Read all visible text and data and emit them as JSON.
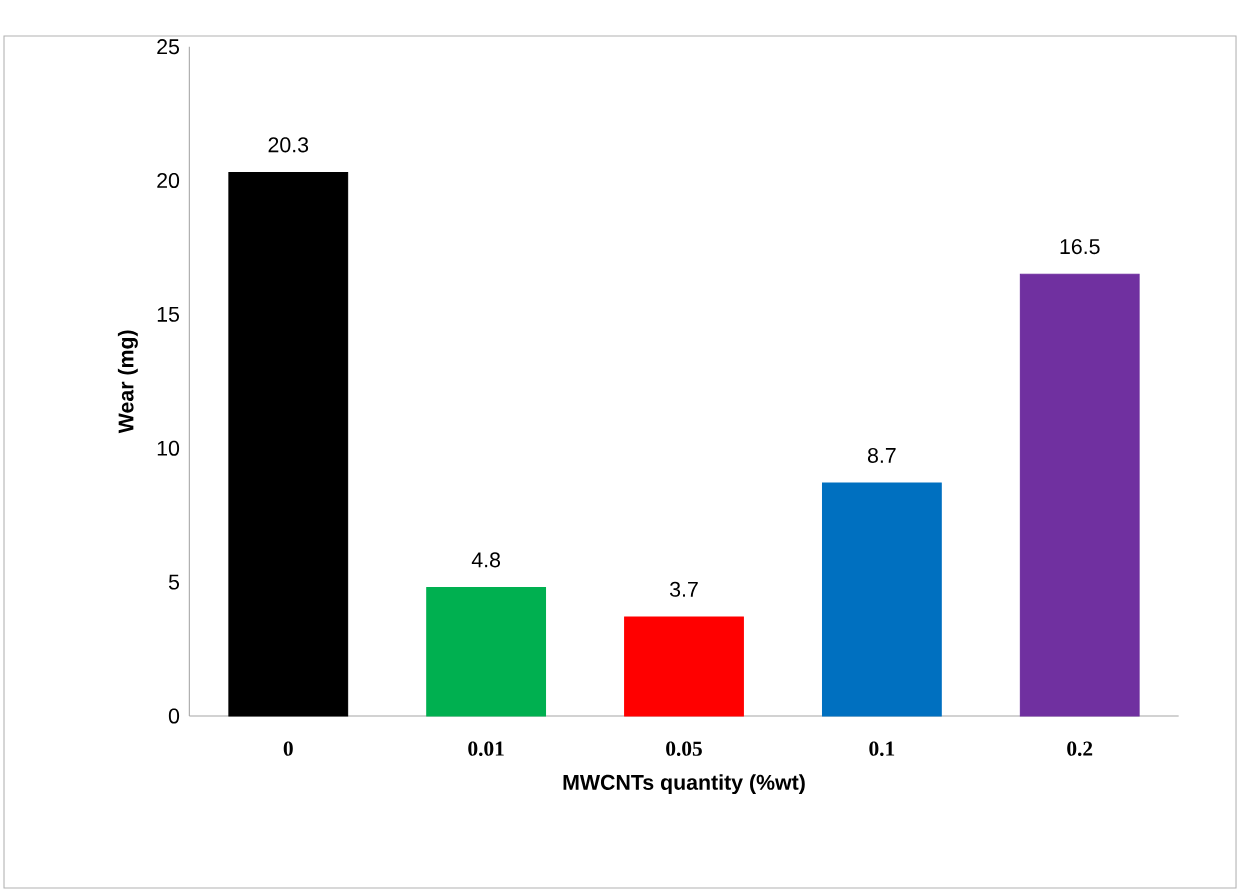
{
  "chart_data": {
    "type": "bar",
    "xlabel": "MWCNTs quantity (%wt)",
    "ylabel": "Wear (mg)",
    "categories": [
      "0",
      "0.01",
      "0.05",
      "0.1",
      "0.2"
    ],
    "values": [
      20.3,
      4.8,
      3.7,
      8.7,
      16.5
    ],
    "colors": [
      "#000000",
      "#00b050",
      "#ff0000",
      "#0070c0",
      "#7030a0"
    ],
    "ylim": [
      0,
      25
    ],
    "yticks": [
      0,
      5,
      10,
      15,
      20,
      25
    ],
    "data_labels": true
  }
}
